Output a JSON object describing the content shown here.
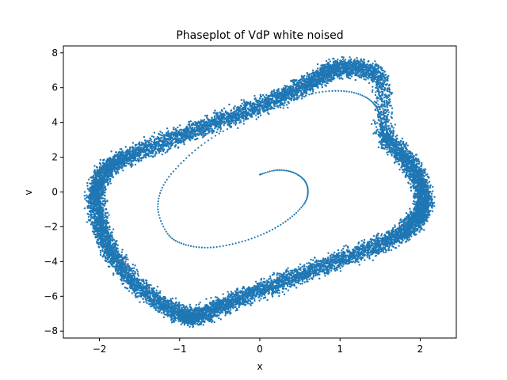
{
  "chart_data": {
    "type": "scatter",
    "title": "Phaseplot of VdP white noised",
    "xlabel": "x",
    "ylabel": "v",
    "xlim": [
      -2.45,
      2.45
    ],
    "ylim": [
      -8.4,
      8.4
    ],
    "xticks": [
      -2,
      -1,
      0,
      1,
      2
    ],
    "xtick_labels": [
      "−2",
      "−1",
      "0",
      "1",
      "2"
    ],
    "yticks": [
      -8,
      -6,
      -4,
      -2,
      0,
      2,
      4,
      6,
      8
    ],
    "ytick_labels": [
      "−8",
      "−6",
      "−4",
      "−2",
      "0",
      "2",
      "4",
      "6",
      "8"
    ],
    "grid": false,
    "marker_color": "#1f77b4",
    "series": [
      {
        "role": "transient-spiral",
        "x": [
          0.0,
          0.2,
          0.4,
          0.55,
          0.6,
          0.55,
          0.35,
          0.05,
          -0.3,
          -0.65,
          -0.95,
          -1.15,
          -1.27,
          -1.2,
          -0.95,
          -0.6,
          -0.15,
          0.3,
          0.7,
          1.05,
          1.3,
          1.45,
          1.52,
          1.55
        ],
        "y": [
          1.0,
          1.25,
          1.15,
          0.7,
          0.05,
          -0.7,
          -1.6,
          -2.4,
          -2.95,
          -3.2,
          -3.0,
          -2.4,
          -1.0,
          0.4,
          1.8,
          3.1,
          4.2,
          5.1,
          5.7,
          5.8,
          5.5,
          4.9,
          4.0,
          3.2
        ]
      },
      {
        "role": "limit-cycle",
        "x": [
          1.55,
          1.75,
          1.9,
          2.0,
          2.05,
          2.0,
          1.9,
          1.7,
          1.4,
          1.0,
          0.6,
          0.2,
          -0.2,
          -0.5,
          -0.75,
          -0.95,
          -1.2,
          -1.5,
          -1.75,
          -1.9,
          -2.0,
          -2.05,
          -2.0,
          -1.9,
          -1.7,
          -1.4,
          -1.0,
          -0.6,
          -0.2,
          0.2,
          0.5,
          0.75,
          0.95,
          1.2,
          1.5,
          1.55
        ],
        "y": [
          3.2,
          2.3,
          1.4,
          0.5,
          -0.5,
          -1.3,
          -1.9,
          -2.5,
          -3.2,
          -3.9,
          -4.6,
          -5.3,
          -6.0,
          -6.6,
          -7.1,
          -7.1,
          -6.5,
          -5.5,
          -4.2,
          -3.0,
          -1.8,
          -0.5,
          0.5,
          1.4,
          1.9,
          2.5,
          3.2,
          3.9,
          4.6,
          5.3,
          6.0,
          6.6,
          7.1,
          7.1,
          6.5,
          3.2
        ]
      }
    ]
  }
}
